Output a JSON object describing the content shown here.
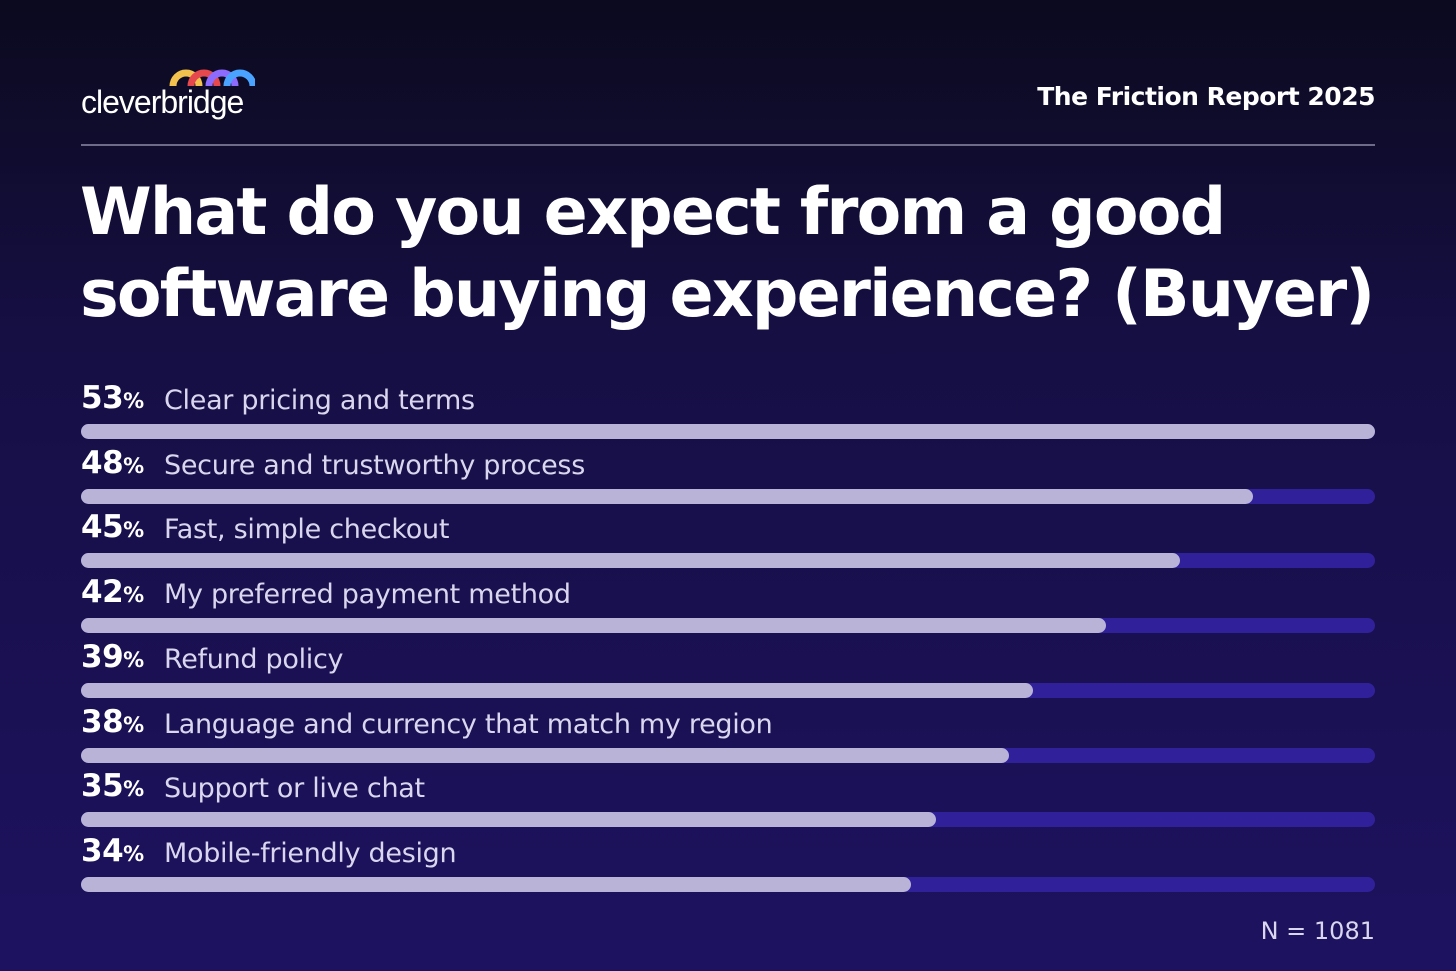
{
  "brand": {
    "logo_text": "cleverbridge",
    "logo_colors": [
      "#f2c14e",
      "#e5484d",
      "#8e6bff",
      "#4aa3ff"
    ]
  },
  "header": {
    "report_title": "The Friction Report 2025"
  },
  "headline": {
    "line1": "What do you expect from a good",
    "line2": "software buying experience? (Buyer)"
  },
  "chart_data": {
    "type": "bar",
    "orientation": "horizontal",
    "xlim": [
      0,
      53
    ],
    "grid": false,
    "categories": [
      "Clear pricing and terms",
      "Secure and trustworthy process",
      "Fast, simple checkout",
      "My preferred payment method",
      "Refund policy",
      "Language and currency that match my region",
      "Support or live chat",
      "Mobile-friendly design"
    ],
    "values": [
      53,
      48,
      45,
      42,
      39,
      38,
      35,
      34
    ],
    "value_labels": [
      "53",
      "48",
      "45",
      "42",
      "39",
      "38",
      "35",
      "34"
    ],
    "value_unit": "%",
    "bar_color": "#b9b3d8",
    "track_color": "#30219a"
  },
  "footer": {
    "sample_size": "N = 1081"
  },
  "colors": {
    "background": "#160f44",
    "text": "#ffffff",
    "muted_text": "#d9d6ee"
  }
}
